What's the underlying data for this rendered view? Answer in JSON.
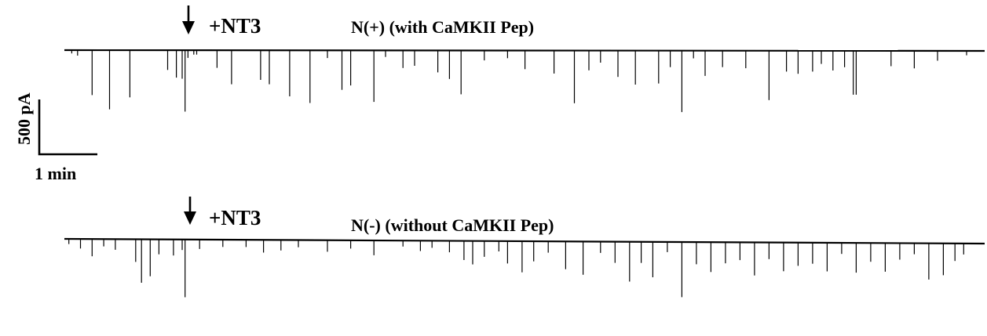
{
  "chart_data": [
    {
      "type": "line",
      "title": "N(+)  (with CaMKII Pep)",
      "annotation": "+NT3",
      "annotation_marker": "down-arrow-icon",
      "xlabel": "",
      "ylabel": "",
      "x_unit": "min",
      "y_unit": "pA",
      "baseline_pA": 0,
      "ylim": [
        -700,
        0
      ],
      "xlim": [
        0,
        15.6
      ],
      "application_time_min": 2.05,
      "events": {
        "t_min": [
          0.1,
          0.2,
          0.45,
          0.75,
          1.1,
          1.75,
          1.9,
          2.0,
          2.05,
          2.1,
          2.2,
          2.25,
          2.6,
          2.85,
          3.35,
          3.5,
          3.85,
          4.2,
          4.5,
          4.75,
          4.9,
          5.3,
          5.5,
          5.8,
          6.0,
          6.4,
          6.6,
          6.8,
          7.2,
          7.6,
          7.9,
          8.4,
          8.75,
          9.0,
          9.2,
          9.5,
          9.8,
          10.2,
          10.4,
          10.6,
          10.8,
          11.0,
          11.3,
          11.7,
          12.1,
          12.4,
          12.6,
          12.85,
          13.0,
          13.2,
          13.4,
          13.55,
          13.6,
          14.2,
          14.6,
          15.0,
          15.5
        ],
        "amp_pA": [
          -30,
          -50,
          -410,
          -540,
          -430,
          -180,
          -250,
          -260,
          -560,
          -70,
          -40,
          -40,
          -160,
          -310,
          -270,
          -310,
          -420,
          -480,
          -70,
          -360,
          -320,
          -470,
          -60,
          -160,
          -140,
          -200,
          -260,
          -400,
          -90,
          -70,
          -170,
          -210,
          -480,
          -180,
          -110,
          -240,
          -310,
          -300,
          -150,
          -560,
          -70,
          -230,
          -150,
          -160,
          -450,
          -190,
          -210,
          -190,
          -120,
          -180,
          -150,
          -400,
          -400,
          -140,
          -160,
          -90,
          -40
        ]
      }
    },
    {
      "type": "line",
      "title": "N(-) (without CaMKII Pep)",
      "annotation": "+NT3",
      "annotation_marker": "down-arrow-icon",
      "xlabel": "",
      "ylabel": "",
      "x_unit": "min",
      "y_unit": "pA",
      "baseline_pA": 0,
      "ylim": [
        -700,
        0
      ],
      "xlim": [
        0,
        15.6
      ],
      "application_time_min": 2.05,
      "events": {
        "t_min": [
          0.05,
          0.25,
          0.45,
          0.65,
          0.85,
          1.2,
          1.3,
          1.45,
          1.6,
          1.85,
          2.0,
          2.05,
          2.3,
          2.7,
          3.1,
          3.4,
          3.7,
          4.0,
          4.5,
          4.9,
          5.3,
          5.8,
          6.1,
          6.3,
          6.6,
          6.85,
          7.0,
          7.2,
          7.45,
          7.6,
          7.85,
          8.05,
          8.3,
          8.6,
          8.9,
          9.2,
          9.45,
          9.7,
          9.9,
          10.1,
          10.35,
          10.6,
          10.85,
          11.1,
          11.35,
          11.6,
          11.85,
          12.1,
          12.35,
          12.6,
          12.85,
          13.1,
          13.35,
          13.6,
          13.85,
          14.1,
          14.35,
          14.6,
          14.85,
          15.1,
          15.3,
          15.45
        ],
        "amp_pA": [
          -40,
          -80,
          -150,
          -60,
          -90,
          -200,
          -390,
          -330,
          -130,
          -140,
          -90,
          -520,
          -80,
          -60,
          -60,
          -110,
          -90,
          -60,
          -100,
          -70,
          -130,
          -50,
          -90,
          -60,
          -100,
          -170,
          -210,
          -140,
          -90,
          -200,
          -280,
          -180,
          -100,
          -250,
          -300,
          -100,
          -190,
          -360,
          -190,
          -320,
          -90,
          -500,
          -200,
          -270,
          -190,
          -160,
          -300,
          -150,
          -260,
          -210,
          -190,
          -260,
          -100,
          -270,
          -170,
          -260,
          -150,
          -100,
          -330,
          -290,
          -160,
          -100
        ]
      }
    }
  ],
  "scale_bar": {
    "y_label": "500 pA",
    "y_value_pA": 500,
    "x_label": "1 min",
    "x_value_min": 1
  },
  "colors": {
    "trace": "#000000",
    "background": "#ffffff"
  }
}
